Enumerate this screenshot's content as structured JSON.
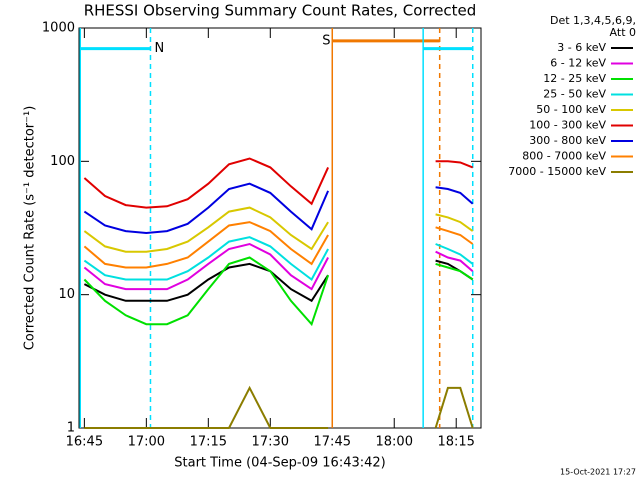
{
  "chart_data": {
    "type": "line",
    "title": "RHESSI Observing Summary Count Rates, Corrected",
    "x_label": "Start Time (04-Sep-09 16:43:42)",
    "y_label": "Corrected Count Rate (s⁻¹ detector⁻¹)",
    "legend_title": [
      "Det 1,3,4,5,6,9,",
      "Att 0"
    ],
    "footer": "15-Oct-2021 17:27",
    "log_scale": true,
    "legend": "right",
    "x": [
      "16:45",
      "16:50",
      "16:55",
      "17:00",
      "17:05",
      "17:10",
      "17:15",
      "17:20",
      "17:25",
      "17:30",
      "17:35",
      "17:40",
      "17:44",
      "17:50",
      "18:10",
      "18:13",
      "18:16",
      "18:19"
    ],
    "xlim": [
      "16:43:42",
      "18:21"
    ],
    "xticks": [
      "16:45",
      "17:00",
      "17:15",
      "17:30",
      "17:45",
      "18:00",
      "18:15"
    ],
    "ylim": [
      1,
      1000
    ],
    "yticks": [
      1,
      10,
      100,
      1000
    ],
    "series": [
      {
        "name": "3 - 6 keV",
        "color": "#000000",
        "values": [
          12,
          10,
          9,
          9,
          9,
          10,
          13,
          16,
          17,
          15,
          11,
          9,
          14,
          null,
          18,
          17,
          15,
          13
        ]
      },
      {
        "name": "6 - 12 keV",
        "color": "#e000e0",
        "values": [
          16,
          12,
          11,
          11,
          11,
          13,
          17,
          22,
          24,
          20,
          14,
          11,
          19,
          null,
          21,
          19,
          18,
          15
        ]
      },
      {
        "name": "12 - 25 keV",
        "color": "#00e000",
        "values": [
          13,
          9,
          7,
          6,
          6,
          7,
          11,
          17,
          19,
          15,
          9,
          6,
          14,
          null,
          17,
          16,
          15,
          13
        ]
      },
      {
        "name": "25 - 50 keV",
        "color": "#00e0e0",
        "values": [
          18,
          14,
          13,
          13,
          13,
          15,
          19,
          25,
          27,
          23,
          17,
          13,
          22,
          null,
          24,
          22,
          20,
          17
        ]
      },
      {
        "name": "50 - 100 keV",
        "color": "#d8c800",
        "values": [
          30,
          23,
          21,
          21,
          22,
          25,
          32,
          42,
          45,
          38,
          28,
          22,
          35,
          null,
          40,
          38,
          35,
          30
        ]
      },
      {
        "name": "100 - 300 keV",
        "color": "#e00000",
        "values": [
          75,
          55,
          47,
          45,
          46,
          52,
          68,
          95,
          105,
          90,
          65,
          48,
          90,
          null,
          100,
          100,
          98,
          90
        ]
      },
      {
        "name": "300 - 800 keV",
        "color": "#0000e0",
        "values": [
          42,
          33,
          30,
          29,
          30,
          34,
          45,
          62,
          68,
          58,
          42,
          31,
          60,
          null,
          64,
          62,
          58,
          48
        ]
      },
      {
        "name": "800 - 7000 keV",
        "color": "#ff8000",
        "values": [
          23,
          17,
          16,
          16,
          17,
          19,
          25,
          33,
          35,
          30,
          22,
          17,
          28,
          null,
          32,
          30,
          28,
          24
        ]
      },
      {
        "name": "7000 - 15000 keV",
        "color": "#8b7d00",
        "values": [
          1,
          1,
          1,
          1,
          1,
          1,
          1,
          1,
          2,
          1,
          1,
          1,
          1,
          null,
          1,
          2,
          2,
          1
        ]
      }
    ],
    "intervals": [
      {
        "label": "N",
        "color": "#00e0ff",
        "start": "16:44",
        "end": "17:01",
        "level": 700
      },
      {
        "label": "S",
        "color": "#f07800",
        "start": "17:45",
        "end": "18:11",
        "level": 800
      },
      {
        "color": "#00e0ff",
        "start": "18:07",
        "end": "18:19",
        "level": 700
      }
    ]
  }
}
